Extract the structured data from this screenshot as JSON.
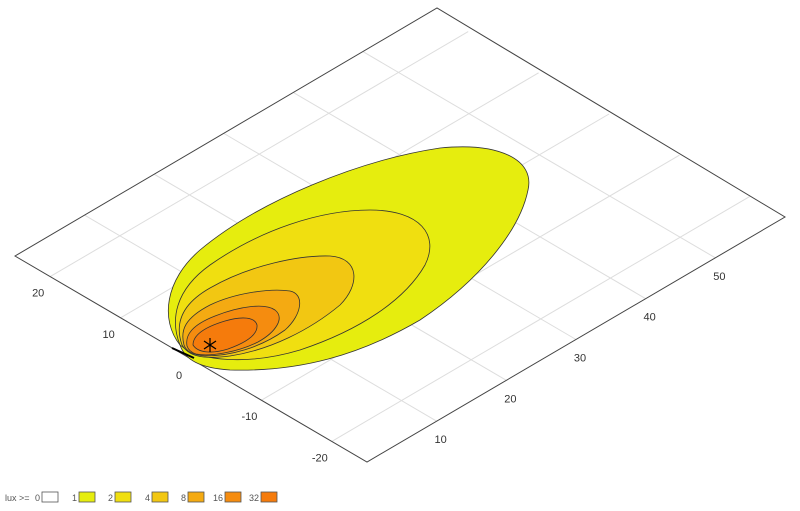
{
  "chart_data": {
    "type": "contour",
    "x_axis": {
      "range": [
        0,
        60
      ],
      "ticks": [
        10,
        20,
        30,
        40,
        50
      ]
    },
    "y_axis": {
      "range": [
        -25,
        25
      ],
      "ticks": [
        20,
        10,
        0,
        -10,
        -20
      ]
    },
    "grid": true,
    "legend": {
      "title": "lux >=",
      "placement": "bottom-left",
      "levels": [
        {
          "label": "0",
          "color": "#ffffff"
        },
        {
          "label": "1",
          "color": "#e6ed0e"
        },
        {
          "label": "2",
          "color": "#f0df10"
        },
        {
          "label": "4",
          "color": "#f2c712"
        },
        {
          "label": "8",
          "color": "#f4aa12"
        },
        {
          "label": "16",
          "color": "#f58c0f"
        },
        {
          "label": "32",
          "color": "#f57b0c"
        }
      ]
    },
    "marker": "asterisk"
  }
}
